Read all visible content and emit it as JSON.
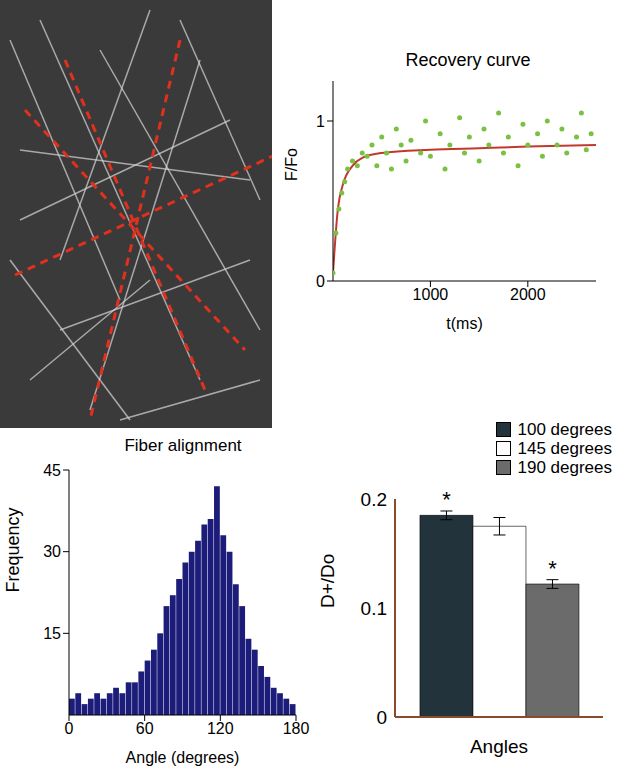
{
  "chart_data": [
    {
      "type": "scatter",
      "title": "Recovery curve",
      "x_label": "t(ms)",
      "y_label": "F/Fo",
      "xlim": [
        0,
        2700
      ],
      "xticks": [
        1000,
        2000
      ],
      "ylim": [
        0,
        1.25
      ],
      "yticks": [
        0,
        1
      ],
      "series": [
        {
          "type": "scatter",
          "color": "#7ac143",
          "marker": "circle",
          "x": [
            0,
            30,
            60,
            90,
            120,
            150,
            200,
            250,
            300,
            350,
            400,
            450,
            500,
            550,
            600,
            650,
            700,
            750,
            800,
            900,
            950,
            1000,
            1100,
            1150,
            1200,
            1300,
            1350,
            1400,
            1500,
            1550,
            1600,
            1700,
            1750,
            1800,
            1900,
            1950,
            2000,
            2100,
            2150,
            2200,
            2300,
            2350,
            2400,
            2500,
            2550,
            2600,
            2650
          ],
          "values": [
            0.05,
            0.3,
            0.45,
            0.55,
            0.62,
            0.7,
            0.75,
            0.72,
            0.8,
            0.78,
            0.85,
            0.72,
            0.9,
            0.8,
            0.7,
            0.95,
            0.85,
            0.75,
            0.88,
            0.8,
            1.0,
            0.78,
            0.92,
            0.7,
            0.85,
            1.02,
            0.8,
            0.9,
            0.75,
            0.95,
            0.85,
            1.05,
            0.8,
            0.9,
            0.72,
            0.98,
            0.85,
            0.92,
            0.78,
            1.0,
            0.85,
            0.95,
            0.8,
            0.9,
            1.05,
            0.82,
            0.92
          ]
        },
        {
          "type": "line",
          "color": "#c0392b",
          "line_style": "solid",
          "x": [
            0,
            50,
            100,
            200,
            300,
            500,
            1000,
            1500,
            2000,
            2700
          ],
          "values": [
            0.05,
            0.45,
            0.6,
            0.72,
            0.77,
            0.8,
            0.82,
            0.83,
            0.84,
            0.85
          ]
        }
      ]
    },
    {
      "type": "histogram",
      "title": "Fiber alignment",
      "x_label": "Angle (degrees)",
      "y_label": "Frequency",
      "bins": [
        0,
        5,
        10,
        15,
        20,
        25,
        30,
        35,
        40,
        45,
        50,
        55,
        60,
        65,
        70,
        75,
        80,
        85,
        90,
        95,
        100,
        105,
        110,
        115,
        120,
        125,
        130,
        135,
        140,
        145,
        150,
        155,
        160,
        165,
        170,
        175,
        180
      ],
      "counts": [
        3,
        4,
        2,
        3,
        4,
        3,
        4,
        5,
        4,
        6,
        6,
        8,
        10,
        12,
        15,
        20,
        22,
        25,
        28,
        30,
        32,
        35,
        36,
        42,
        33,
        30,
        24,
        20,
        14,
        12,
        9,
        7,
        5,
        4,
        3,
        2
      ],
      "color": "#1c1c7a",
      "xlim": [
        0,
        180
      ],
      "xticks": [
        0,
        60,
        120,
        180
      ],
      "ylim": [
        0,
        45
      ],
      "yticks": [
        15,
        30,
        45
      ]
    },
    {
      "type": "bar",
      "x_label": "Angles",
      "y_label": "D+/Do",
      "categories": [
        null
      ],
      "series": [
        {
          "name": "100 degrees",
          "color": "#22333b",
          "values": [
            0.185
          ],
          "errors": [
            0.004
          ],
          "annotation": "*"
        },
        {
          "name": "145 degrees",
          "color": "#ffffff",
          "values": [
            0.175
          ],
          "errors": [
            0.008
          ]
        },
        {
          "name": "190 degrees",
          "color": "#6b6b6b",
          "values": [
            0.122
          ],
          "errors": [
            0.004
          ],
          "annotation": "*"
        }
      ],
      "ylim": [
        0,
        0.2
      ],
      "yticks": [
        0,
        0.1,
        0.2
      ],
      "legend": "top-right",
      "tick_labels": "y"
    }
  ]
}
